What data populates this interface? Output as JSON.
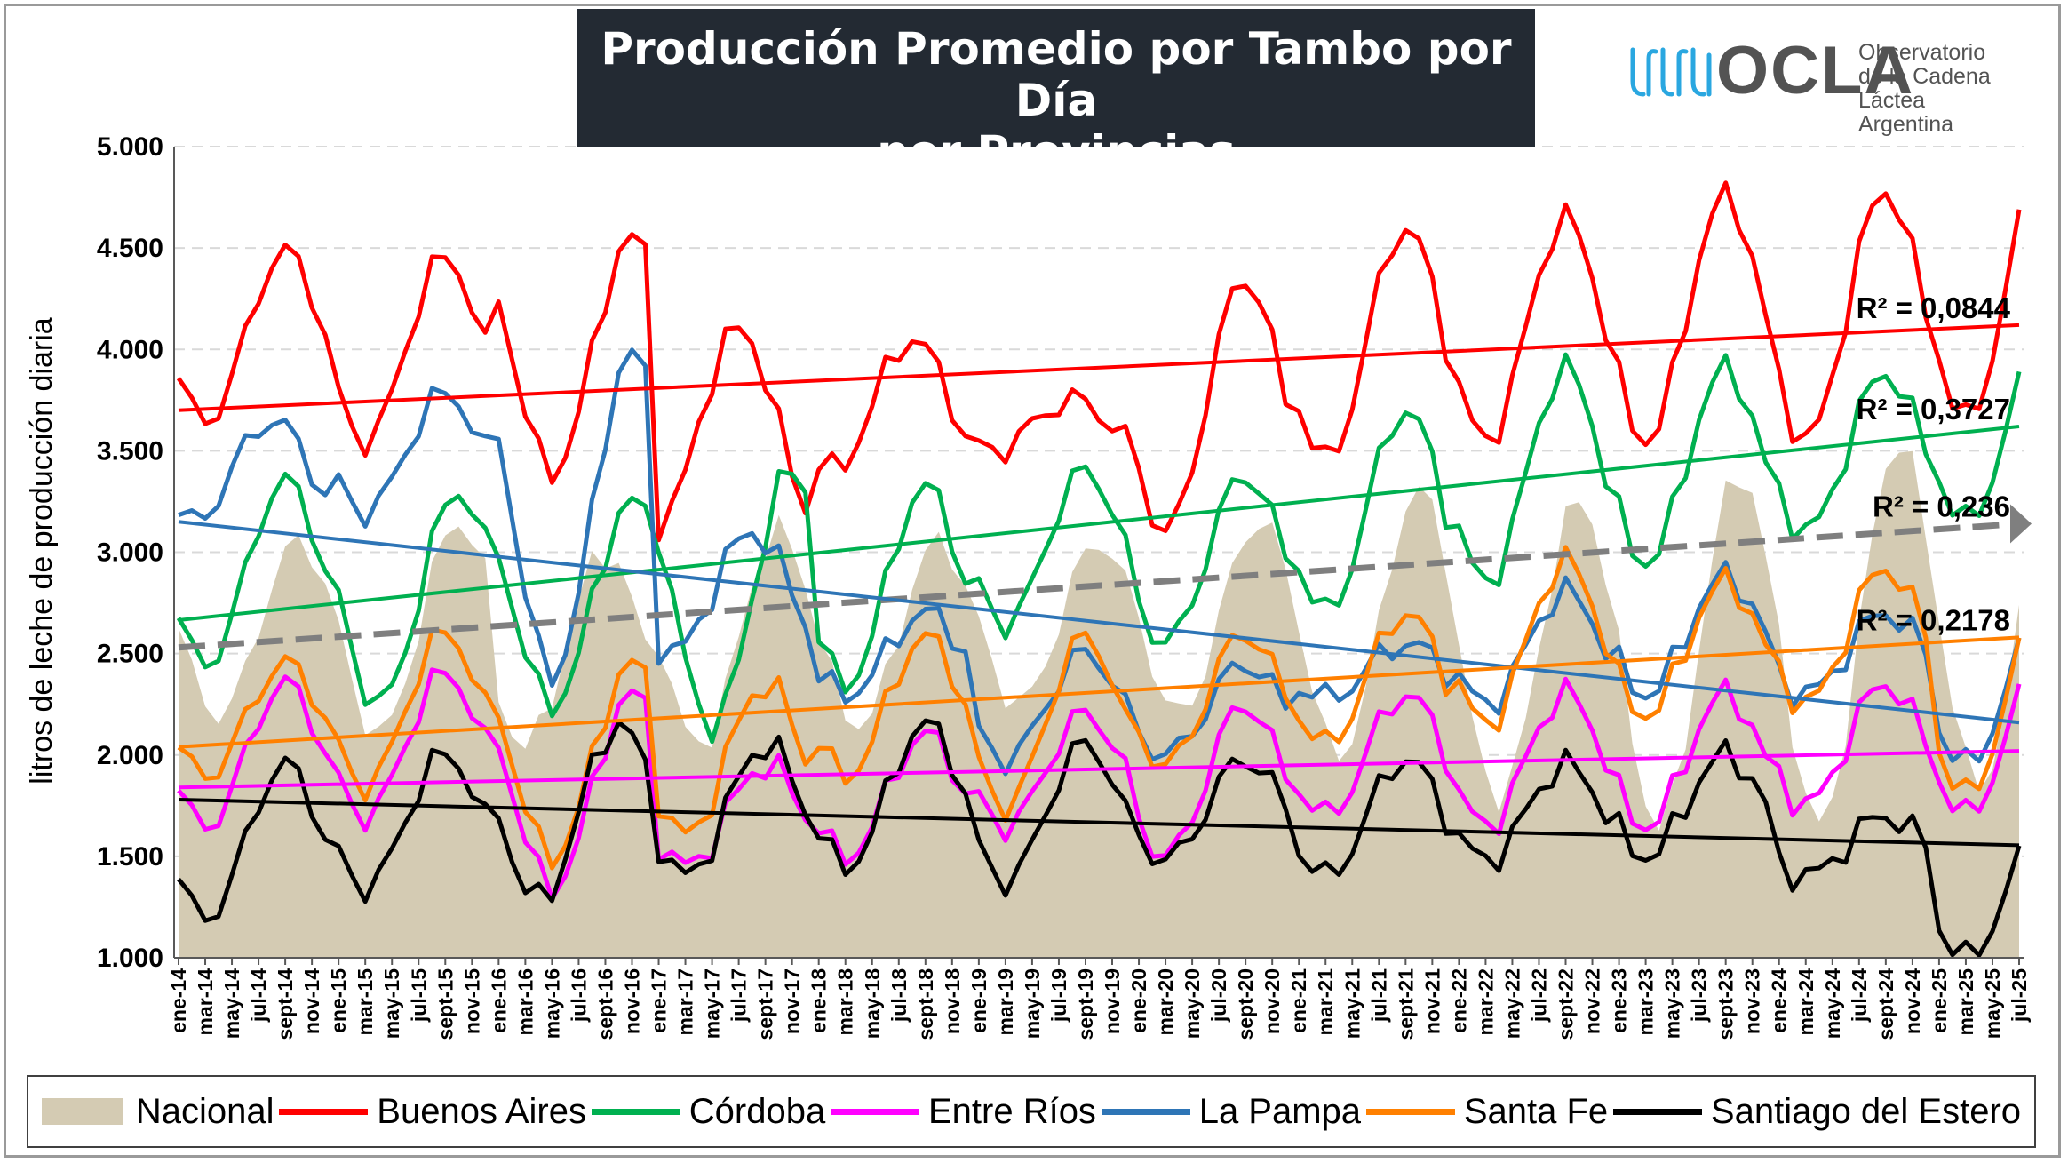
{
  "title": {
    "line1": "Producción Promedio por Tambo por Día",
    "line2": "- por Provincias -"
  },
  "logo": {
    "word": "OCLA",
    "sub_line1": "Observatorio",
    "sub_line2": "de la Cadena Láctea",
    "sub_line3": "Argentina",
    "icon": "milk-wave-icon"
  },
  "colors": {
    "Nacional": "#d4cbb3",
    "Buenos Aires": "#ff0000",
    "Córdoba": "#00b050",
    "Entre Ríos": "#ff00ff",
    "La Pampa": "#2e75b6",
    "Santa Fe": "#ff8000",
    "Santiago del Estero": "#000000",
    "trend_nacional": "#7f7f7f"
  },
  "chart_data": {
    "type": "line",
    "ylabel": "litros de leche de producción diaria",
    "ylim": [
      1000,
      5000
    ],
    "yticks": [
      "1.000",
      "1.500",
      "2.000",
      "2.500",
      "3.000",
      "3.500",
      "4.000",
      "4.500",
      "5.000"
    ],
    "ytick_values": [
      1000,
      1500,
      2000,
      2500,
      3000,
      3500,
      4000,
      4500,
      5000
    ],
    "grid": "horizontal dashed",
    "legend": "bottom",
    "x_period": "monthly ene-14 .. jul-25",
    "x_count": 139,
    "xticks": [
      "ene-14",
      "mar-14",
      "may-14",
      "jul-14",
      "sept-14",
      "nov-14",
      "ene-15",
      "mar-15",
      "may-15",
      "jul-15",
      "sept-15",
      "nov-15",
      "ene-16",
      "mar-16",
      "may-16",
      "jul-16",
      "sept-16",
      "nov-16",
      "ene-17",
      "mar-17",
      "may-17",
      "jul-17",
      "sept-17",
      "nov-17",
      "ene-18",
      "mar-18",
      "may-18",
      "jul-18",
      "sept-18",
      "nov-18",
      "ene-19",
      "mar-19",
      "may-19",
      "jul-19",
      "sept-19",
      "nov-19",
      "ene-20",
      "mar-20",
      "may-20",
      "jul-20",
      "sept-20",
      "nov-20",
      "ene-21",
      "mar-21",
      "may-21",
      "jul-21",
      "sept-21",
      "nov-21",
      "ene-22",
      "mar-22",
      "may-22",
      "jul-22",
      "sept-22",
      "nov-22",
      "ene-23",
      "mar-23",
      "may-23",
      "jul-23",
      "sept-23",
      "nov-23",
      "ene-24",
      "mar-24",
      "may-24",
      "jul-24",
      "sept-24",
      "nov-24",
      "ene-25",
      "mar-25",
      "may-25",
      "jul-25"
    ],
    "series_order": [
      "Buenos Aires",
      "Córdoba",
      "Entre Ríos",
      "La Pampa",
      "Santa Fe",
      "Santiago del Estero"
    ],
    "area_series": {
      "name": "Nacional",
      "low": [
        2200,
        2100,
        2050,
        2050,
        2150,
        2250,
        2200,
        2000,
        1800,
        1650,
        1650,
        1850,
        2050,
        2050,
        1750
      ],
      "high": [
        3050,
        3150,
        3000,
        3100,
        3050,
        3050,
        3150,
        3300,
        3250,
        3400,
        3550,
        3500,
        3500,
        3500,
        3550
      ],
      "phase": [
        9,
        9,
        8,
        9,
        9,
        9,
        9,
        9,
        9,
        9,
        9,
        9,
        9,
        9,
        9
      ]
    },
    "series": [
      {
        "name": "Buenos Aires",
        "low": [
          3650,
          3550,
          3400,
          3150,
          3400,
          3500,
          3100,
          3450,
          3550,
          3550,
          3550,
          3650,
          3400,
          3500,
          3900
        ],
        "high": [
          4480,
          4450,
          4550,
          4100,
          4050,
          3750,
          4350,
          4600,
          4640,
          4750,
          4780,
          4950,
          4950,
          4950,
          4950
        ],
        "phase": [
          8,
          8,
          10,
          6,
          7,
          7,
          8,
          8,
          8,
          8,
          8,
          8,
          8,
          8,
          8
        ]
      },
      {
        "name": "Córdoba",
        "low": [
          2450,
          2250,
          2250,
          2150,
          2350,
          2650,
          2550,
          2700,
          2850,
          2950,
          3100,
          3150,
          2500,
          3050,
          3050
        ],
        "high": [
          3350,
          3300,
          3250,
          3400,
          3320,
          3400,
          3380,
          3700,
          3900,
          3900,
          3880,
          4050,
          4050,
          4200,
          4350
        ],
        "phase": [
          8,
          9,
          10,
          10,
          8,
          8,
          8,
          8,
          8,
          8,
          8,
          8,
          8,
          8,
          8
        ]
      },
      {
        "name": "Entre Ríos",
        "low": [
          1650,
          1700,
          1350,
          1450,
          1500,
          1650,
          1500,
          1700,
          1650,
          1650,
          1750,
          1700,
          1480,
          1750,
          1750
        ],
        "high": [
          2350,
          2400,
          2300,
          1950,
          2100,
          2200,
          2250,
          2300,
          2300,
          2300,
          2350,
          2480,
          2480,
          2500,
          2600
        ],
        "phase": [
          8,
          8,
          10,
          8,
          8,
          8,
          8,
          8,
          8,
          8,
          8,
          8,
          8,
          8,
          8
        ]
      },
      {
        "name": "La Pampa",
        "low": [
          3150,
          3200,
          2400,
          2500,
          2300,
          1980,
          2000,
          2280,
          2250,
          2300,
          2300,
          1950,
          1950,
          2150,
          2150
        ],
        "high": [
          3650,
          3780,
          3980,
          3100,
          2700,
          2500,
          2450,
          2550,
          2800,
          2880,
          2700,
          2700,
          2700,
          2600,
          2770
        ],
        "phase": [
          7,
          8,
          10,
          7,
          8,
          8,
          8,
          8,
          8,
          8,
          8,
          8,
          8,
          8,
          8
        ]
      },
      {
        "name": "Santa Fe",
        "low": [
          1900,
          1850,
          1500,
          1600,
          1900,
          1750,
          1950,
          2050,
          2150,
          2200,
          2250,
          1800,
          1800,
          2050,
          2050
        ],
        "high": [
          2450,
          2600,
          2450,
          2350,
          2580,
          2580,
          2600,
          2700,
          2950,
          2850,
          2920,
          2750,
          2750,
          2950,
          2950
        ],
        "phase": [
          8,
          8,
          10,
          8,
          8,
          8,
          8,
          8,
          8,
          8,
          8,
          8,
          8,
          8,
          8
        ]
      },
      {
        "name": "Santiago del Estero",
        "low": [
          1200,
          1350,
          1280,
          1400,
          1450,
          1380,
          1480,
          1400,
          1480,
          1500,
          1400,
          1000,
          1000,
          1200,
          1200
        ],
        "high": [
          1950,
          2000,
          2150,
          2050,
          2150,
          2050,
          1980,
          1980,
          1950,
          2000,
          1700,
          1650,
          1650,
          1900,
          1900
        ],
        "phase": [
          8,
          8,
          9,
          8,
          8,
          8,
          8,
          8,
          8,
          8,
          8,
          8,
          8,
          8,
          8
        ]
      }
    ],
    "trendlines": [
      {
        "name": "Buenos Aires",
        "start": 3700,
        "end": 4120,
        "r2": "R² = 0,0844"
      },
      {
        "name": "Córdoba",
        "start": 2665,
        "end": 3620,
        "r2": "R² = 0,3727"
      },
      {
        "name": "Nacional",
        "start": 2530,
        "end": 3140,
        "r2": "R² = 0,236",
        "dashed": true
      },
      {
        "name": "La Pampa",
        "start": 3150,
        "end": 2160,
        "r2": ""
      },
      {
        "name": "Santa Fe",
        "start": 2040,
        "end": 2580,
        "r2": "R² = 0,2178"
      },
      {
        "name": "Entre Ríos",
        "start": 1840,
        "end": 2020,
        "r2": ""
      },
      {
        "name": "Santiago del Estero",
        "start": 1780,
        "end": 1555,
        "r2": ""
      }
    ]
  },
  "legend_items": [
    {
      "label": "Nacional",
      "kind": "area"
    },
    {
      "label": "Buenos Aires",
      "kind": "line"
    },
    {
      "label": "Córdoba",
      "kind": "line"
    },
    {
      "label": "Entre Ríos",
      "kind": "line"
    },
    {
      "label": "La Pampa",
      "kind": "line"
    },
    {
      "label": "Santa Fe",
      "kind": "line"
    },
    {
      "label": "Santiago del Estero",
      "kind": "line"
    }
  ]
}
